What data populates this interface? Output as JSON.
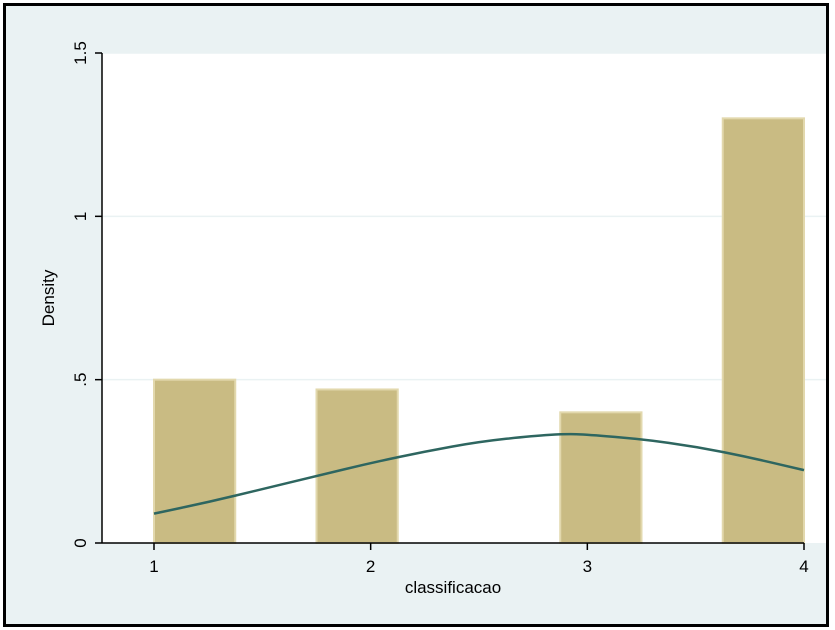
{
  "chart_data": {
    "type": "bar",
    "title": "",
    "xlabel": "classificacao",
    "ylabel": "Density",
    "x_ticks": [
      1,
      2,
      3,
      4
    ],
    "x_tick_labels": [
      "1",
      "2",
      "3",
      "4"
    ],
    "y_ticks": [
      0,
      0.5,
      1,
      1.5
    ],
    "y_tick_labels": [
      "0",
      ".5",
      "1",
      "1.5"
    ],
    "xlim": [
      0.76,
      4
    ],
    "ylim": [
      0,
      1.5
    ],
    "grid": true,
    "legend": "none",
    "series": [
      {
        "type": "histogram",
        "bars": [
          {
            "x_start": 1.0,
            "x_end": 1.375,
            "value": 0.5
          },
          {
            "x_start": 1.75,
            "x_end": 2.125,
            "value": 0.47
          },
          {
            "x_start": 2.875,
            "x_end": 3.25,
            "value": 0.4
          },
          {
            "x_start": 3.625,
            "x_end": 4.0,
            "value": 1.3
          }
        ]
      },
      {
        "type": "line",
        "points": [
          {
            "x": 1.0,
            "y": 0.09
          },
          {
            "x": 1.25,
            "y": 0.125
          },
          {
            "x": 1.5,
            "y": 0.165
          },
          {
            "x": 1.75,
            "y": 0.205
          },
          {
            "x": 2.0,
            "y": 0.245
          },
          {
            "x": 2.25,
            "y": 0.28
          },
          {
            "x": 2.5,
            "y": 0.31
          },
          {
            "x": 2.75,
            "y": 0.328
          },
          {
            "x": 2.9,
            "y": 0.334
          },
          {
            "x": 3.0,
            "y": 0.332
          },
          {
            "x": 3.25,
            "y": 0.318
          },
          {
            "x": 3.5,
            "y": 0.295
          },
          {
            "x": 3.75,
            "y": 0.262
          },
          {
            "x": 4.0,
            "y": 0.223
          }
        ]
      }
    ]
  },
  "colors": {
    "outer_background": "#eaf2f3",
    "plot_background": "#ffffff",
    "grid": "#eaf2f3",
    "bar_fill": "#c9bb83",
    "bar_stroke": "#e2d8ad",
    "line": "#2e6660",
    "axis": "#000000"
  }
}
